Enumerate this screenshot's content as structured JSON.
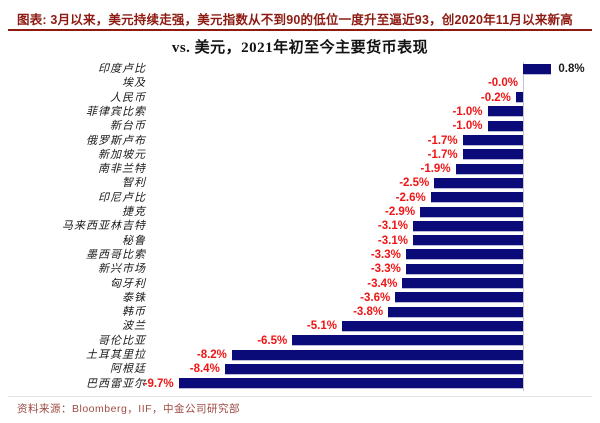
{
  "header": {
    "text": "图表: 3月以来，美元持续走强，美元指数从不到90的低位一度升至逼近93，创2020年11月以来新高"
  },
  "title": "vs. 美元，2021年初至今主要货币表现",
  "footer": {
    "text": "资料来源：Bloomberg，IIF，中金公司研究部"
  },
  "colors": {
    "bar": "#0a0a78",
    "negative_value_label": "#f01414",
    "positive_value_label": "#1a1a1a",
    "header_text": "#8e1b12",
    "header_rule": "#8e1b12",
    "footer_text": "#9d4b43",
    "footer_rule": "#e3e3e3",
    "zero_axis": "#c4c4cc"
  },
  "chart_data": {
    "type": "bar",
    "orientation": "horizontal",
    "title": "vs. 美元，2021年初至今主要货币表现",
    "xlabel": "",
    "ylabel": "",
    "value_unit": "percent",
    "xlim": [
      -10.5,
      2.2
    ],
    "grid": false,
    "legend": false,
    "categories": [
      "印度卢比",
      "埃及",
      "人民币",
      "菲律宾比索",
      "新台币",
      "俄罗斯卢布",
      "新加坡元",
      "南非兰特",
      "智利",
      "印尼卢比",
      "捷克",
      "马来西亚林吉特",
      "秘鲁",
      "墨西哥比索",
      "新兴市场",
      "匈牙利",
      "泰铢",
      "韩币",
      "波兰",
      "哥伦比亚",
      "土耳其里拉",
      "阿根廷",
      "巴西雷亚尔"
    ],
    "values": [
      0.8,
      -0.0,
      -0.2,
      -1.0,
      -1.0,
      -1.7,
      -1.7,
      -1.9,
      -2.5,
      -2.6,
      -2.9,
      -3.1,
      -3.1,
      -3.3,
      -3.3,
      -3.4,
      -3.6,
      -3.8,
      -5.1,
      -6.5,
      -8.2,
      -8.4,
      -9.7
    ],
    "value_labels": [
      "0.8%",
      "-0.0%",
      "-0.2%",
      "-1.0%",
      "-1.0%",
      "-1.7%",
      "-1.7%",
      "-1.9%",
      "-2.5%",
      "-2.6%",
      "-2.9%",
      "-3.1%",
      "-3.1%",
      "-3.3%",
      "-3.3%",
      "-3.4%",
      "-3.6%",
      "-3.8%",
      "-5.1%",
      "-6.5%",
      "-8.2%",
      "-8.4%",
      "-9.7%"
    ]
  }
}
